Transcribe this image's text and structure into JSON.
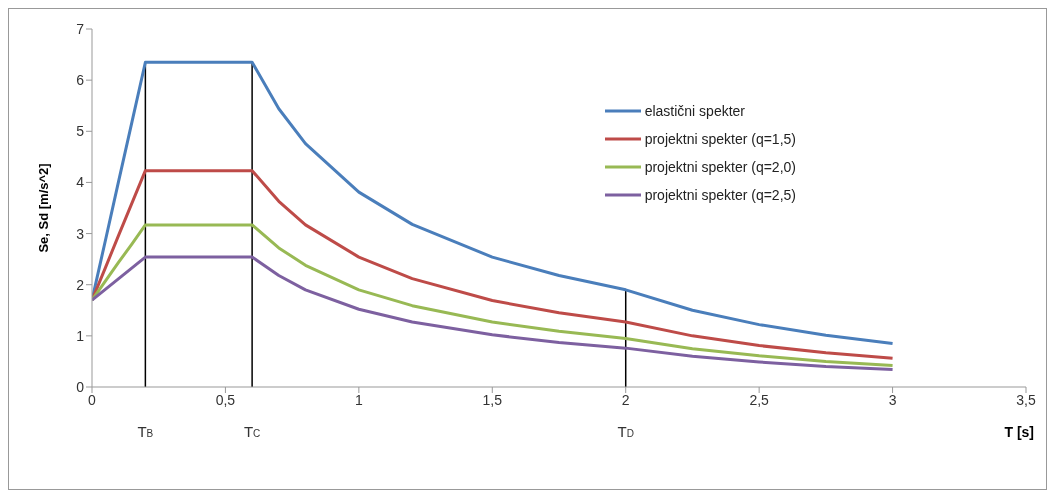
{
  "chart_data": {
    "type": "line",
    "xlabel": "T  [s]",
    "ylabel": "Se, Sd [m/s^2]",
    "x": [
      0,
      0.05,
      0.1,
      0.15,
      0.2,
      0.6,
      0.7,
      0.8,
      1,
      1.2,
      1.5,
      1.75,
      2,
      2.25,
      2.5,
      2.75,
      3
    ],
    "series": [
      {
        "name": "elastični spekter",
        "color": "#4a7ebb",
        "values": [
          1.7,
          2.86,
          4.03,
          5.19,
          6.35,
          6.35,
          5.44,
          4.76,
          3.81,
          3.18,
          2.54,
          2.18,
          1.9,
          1.5,
          1.22,
          1.01,
          0.85
        ]
      },
      {
        "name": "projektni spekter (q=1,5)",
        "color": "#be4b48",
        "values": [
          1.7,
          2.33,
          2.97,
          3.6,
          4.23,
          4.23,
          3.63,
          3.17,
          2.54,
          2.12,
          1.69,
          1.45,
          1.27,
          1.0,
          0.81,
          0.67,
          0.56
        ]
      },
      {
        "name": "projektni spekter (q=2,0)",
        "color": "#98b954",
        "values": [
          1.7,
          2.07,
          2.44,
          2.8,
          3.17,
          3.17,
          2.72,
          2.38,
          1.9,
          1.59,
          1.27,
          1.09,
          0.95,
          0.75,
          0.61,
          0.5,
          0.42
        ]
      },
      {
        "name": "projektni spekter (q=2,5)",
        "color": "#7d60a0",
        "values": [
          1.7,
          1.91,
          2.12,
          2.33,
          2.54,
          2.54,
          2.18,
          1.9,
          1.52,
          1.27,
          1.02,
          0.87,
          0.76,
          0.6,
          0.49,
          0.4,
          0.34
        ]
      }
    ],
    "xlim": [
      0,
      3.5
    ],
    "xticks": [
      0,
      {
        "value": 0.5,
        "label": "0,5"
      },
      1,
      {
        "value": 1.5,
        "label": "1,5"
      },
      2,
      {
        "value": 2.5,
        "label": "2,5"
      },
      3,
      {
        "value": 3.5,
        "label": "3,5"
      }
    ],
    "ylim": [
      0,
      7
    ],
    "yticks": [
      0,
      1,
      2,
      3,
      4,
      5,
      6,
      7
    ],
    "ref_lines": [
      {
        "axis": "x",
        "value": 0.2,
        "label": "T$_{B}$",
        "color": "#000000"
      },
      {
        "axis": "x",
        "value": 0.6,
        "label": "T$_{C}$",
        "color": "#000000"
      },
      {
        "axis": "x",
        "value": 2,
        "label": "T$_{D}$",
        "color": "#000000"
      }
    ],
    "grid": false,
    "legend": "top right",
    "marker": "none",
    "line_style": "solid"
  }
}
